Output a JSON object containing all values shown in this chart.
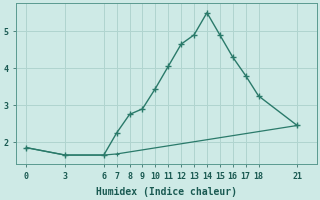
{
  "xlabel": "Humidex (Indice chaleur)",
  "bg_color": "#ceeae6",
  "grid_color": "#b0d4cf",
  "line_color": "#2a7a6a",
  "x_ticks": [
    0,
    3,
    6,
    7,
    8,
    9,
    10,
    11,
    12,
    13,
    14,
    15,
    16,
    17,
    18,
    21
  ],
  "y_ticks": [
    2,
    3,
    4,
    5
  ],
  "ylim": [
    1.4,
    5.75
  ],
  "xlim": [
    -0.8,
    22.5
  ],
  "curve1_x": [
    0,
    3,
    6,
    7,
    8,
    9,
    10,
    11,
    12,
    13,
    14,
    15,
    16,
    17,
    18,
    21
  ],
  "curve1_y": [
    1.85,
    1.65,
    1.65,
    2.25,
    2.75,
    2.9,
    3.45,
    4.05,
    4.65,
    4.9,
    5.5,
    4.9,
    4.3,
    3.8,
    3.25,
    2.45
  ],
  "curve2_x": [
    0,
    3,
    6,
    7,
    21
  ],
  "curve2_y": [
    1.85,
    1.65,
    1.65,
    1.68,
    2.45
  ]
}
